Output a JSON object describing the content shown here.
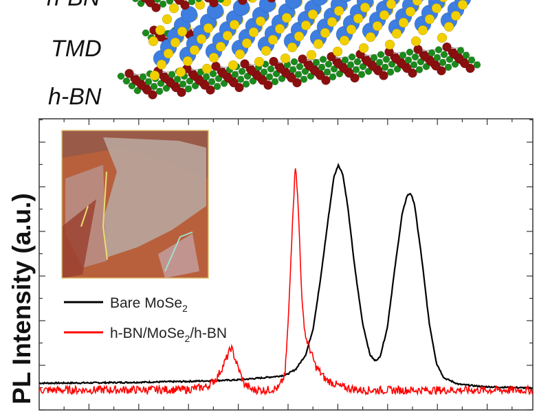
{
  "structure": {
    "top_label": "h-BN",
    "middle_label": "TMD",
    "bottom_label": "h-BN",
    "colors": {
      "boron": "#8b0f0f",
      "nitrogen": "#1a8a1a",
      "metal": "#3d7ee0",
      "chalcogen": "#f2d000"
    }
  },
  "chart_data": {
    "type": "line",
    "title": "",
    "xlabel": "",
    "ylabel": "PL Intensity (a.u.)",
    "xlim": [
      0,
      100
    ],
    "ylim": [
      0,
      100
    ],
    "tick_labels_shown": false,
    "grid": false,
    "legend_placement": "left-middle",
    "series": [
      {
        "name": "Bare MoSe2",
        "name_main": "Bare MoSe",
        "name_sub": "2",
        "color": "#000000",
        "x": [
          0,
          10,
          20,
          30,
          40,
          45,
          48,
          50,
          52,
          54,
          55.5,
          57,
          58.5,
          59.7,
          60.6,
          61.5,
          62.5,
          64,
          65.5,
          67,
          68,
          69,
          70.5,
          72,
          73.5,
          74.5,
          75.2,
          76,
          77.5,
          79,
          80.5,
          82,
          85,
          90,
          100
        ],
        "y": [
          9.2,
          9.3,
          9.5,
          9.8,
          10.3,
          11,
          11.5,
          12,
          14,
          19,
          28,
          45,
          65,
          80,
          84.2,
          81,
          70,
          48,
          30,
          19,
          16.9,
          18,
          28,
          48,
          67,
          73.5,
          74.5,
          71,
          52,
          30,
          16,
          11,
          8.8,
          8,
          7.5
        ]
      },
      {
        "name": "h-BN/MoSe2/h-BN",
        "name_pre": "h-BN/MoSe",
        "name_sub": "2",
        "name_post": "/h-BN",
        "color": "#ff0000",
        "x": [
          0,
          30,
          34,
          36,
          37.5,
          38.9,
          40.2,
          41.5,
          43,
          46,
          48.5,
          49.8,
          50.6,
          51.3,
          51.95,
          52.6,
          53.3,
          54,
          54.7,
          56,
          58,
          61,
          65,
          100
        ],
        "y": [
          6.8,
          7,
          8,
          11,
          16,
          21.5,
          15,
          9,
          7,
          6.8,
          7.5,
          12,
          35,
          65,
          85.6,
          65,
          35,
          25,
          21.7,
          15,
          10.5,
          8,
          6.8,
          6.8
        ]
      }
    ]
  }
}
